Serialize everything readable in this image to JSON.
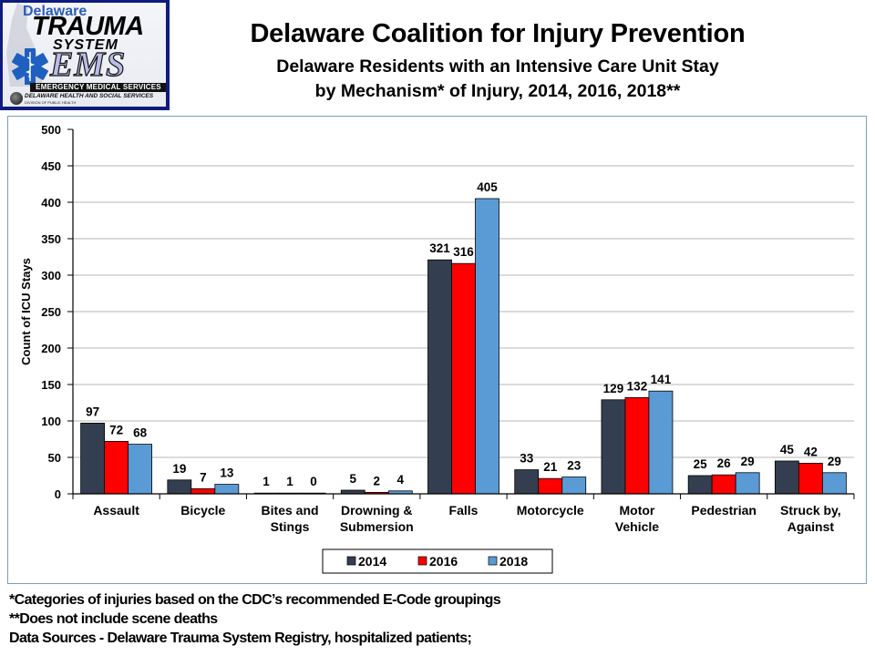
{
  "logo": {
    "line1": "Delaware",
    "line2": "TRAUMA",
    "line3": "SYSTEM",
    "line4": "EMS",
    "banner": "EMERGENCY MEDICAL SERVICES",
    "agency": "DELAWARE HEALTH AND SOCIAL SERVICES",
    "division": "DIVISION OF PUBLIC HEALTH"
  },
  "header": {
    "title": "Delaware Coalition for Injury Prevention",
    "subtitle_line1": "Delaware Residents with an Intensive Care Unit Stay",
    "subtitle_line2": "by Mechanism* of Injury, 2014, 2016, 2018**"
  },
  "footnotes": [
    "*Categories of injuries based on the CDC’s recommended E-Code groupings",
    "**Does not include scene deaths",
    "Data Sources - Delaware Trauma System Registry, hospitalized patients;"
  ],
  "chart_data": {
    "type": "bar",
    "title": "Delaware Residents with an Intensive Care Unit Stay by Mechanism* of Injury, 2014, 2016, 2018**",
    "xlabel": "",
    "ylabel": "Count of ICU Stays",
    "ylim": [
      0,
      500
    ],
    "yticks": [
      0,
      50,
      100,
      150,
      200,
      250,
      300,
      350,
      400,
      450,
      500
    ],
    "grid": true,
    "legend_position": "bottom",
    "categories": [
      [
        "Assault"
      ],
      [
        "Bicycle"
      ],
      [
        "Bites and",
        "Stings"
      ],
      [
        "Drowning &",
        "Submersion"
      ],
      [
        "Falls"
      ],
      [
        "Motorcycle"
      ],
      [
        "Motor",
        "Vehicle"
      ],
      [
        "Pedestrian"
      ],
      [
        "Struck by,",
        "Against"
      ]
    ],
    "series": [
      {
        "name": "2014",
        "color": "#333f50",
        "values": [
          97,
          19,
          1,
          5,
          321,
          33,
          129,
          25,
          45
        ]
      },
      {
        "name": "2016",
        "color": "#ff0000",
        "values": [
          72,
          7,
          1,
          2,
          316,
          21,
          132,
          26,
          42
        ]
      },
      {
        "name": "2018",
        "color": "#5b9bd5",
        "values": [
          68,
          13,
          0,
          4,
          405,
          23,
          141,
          29,
          29
        ]
      }
    ]
  }
}
